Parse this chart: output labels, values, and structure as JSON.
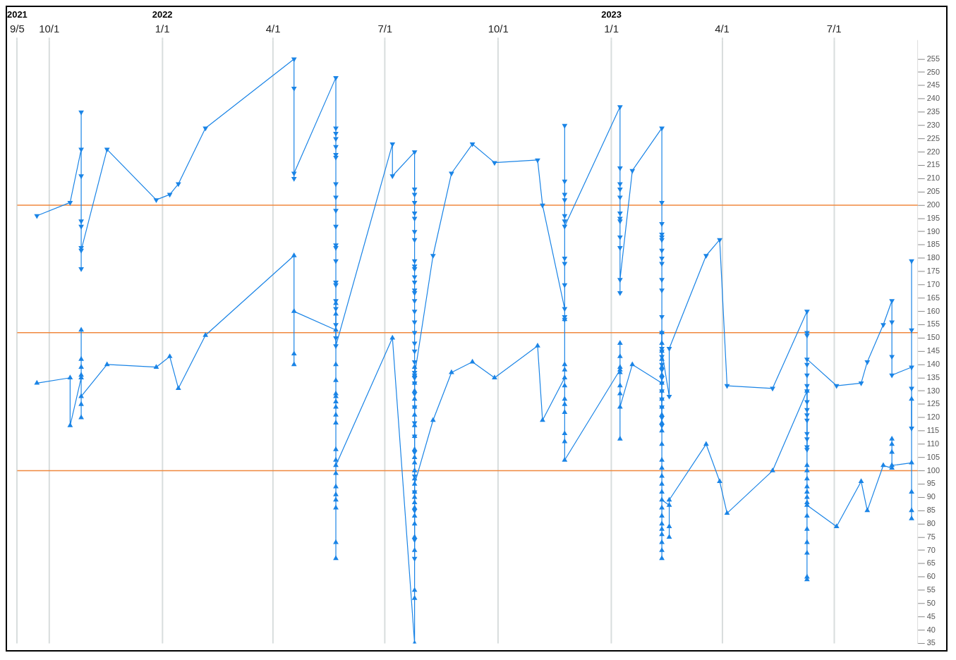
{
  "chart_data": {
    "type": "line",
    "xlim": [
      "2021-09-05",
      "2023-09-07"
    ],
    "xticks": [
      {
        "value": "2021-09-05",
        "label": "9/5"
      },
      {
        "value": "2021-10-01",
        "label": "10/1"
      },
      {
        "value": "2022-01-01",
        "label": "1/1"
      },
      {
        "value": "2022-04-01",
        "label": "4/1"
      },
      {
        "value": "2022-07-01",
        "label": "7/1"
      },
      {
        "value": "2022-10-01",
        "label": "10/1"
      },
      {
        "value": "2023-01-01",
        "label": "1/1"
      },
      {
        "value": "2023-04-01",
        "label": "4/1"
      },
      {
        "value": "2023-07-01",
        "label": "7/1"
      }
    ],
    "x2lim": [
      "2021-09-05",
      "2023-09-07"
    ],
    "x2ticks": [
      {
        "value": "2021-09-05",
        "label": "2021"
      },
      {
        "value": "2022-01-01",
        "label": "2022"
      },
      {
        "value": "2023-01-01",
        "label": "2023"
      }
    ],
    "ylim": [
      35,
      262
    ],
    "yticks": [
      35,
      40,
      45,
      50,
      55,
      60,
      65,
      70,
      75,
      80,
      85,
      90,
      95,
      100,
      105,
      110,
      115,
      120,
      125,
      130,
      135,
      140,
      145,
      150,
      155,
      160,
      165,
      170,
      175,
      180,
      185,
      190,
      195,
      200,
      205,
      210,
      215,
      220,
      225,
      230,
      235,
      240,
      245,
      250,
      255
    ],
    "grid": "x",
    "marker": "triangle",
    "ref_lines": [
      {
        "axis": "y",
        "value": 200,
        "color": "#f0883e"
      },
      {
        "axis": "y",
        "value": 152,
        "color": "#f0883e"
      },
      {
        "axis": "y",
        "value": 100,
        "color": "#f0883e"
      }
    ],
    "series": [
      {
        "color": "#1a84e6",
        "x": [
          "2021-09-21",
          "2021-10-18",
          "2021-10-27",
          "2021-10-27",
          "2021-10-27",
          "2021-10-27",
          "2021-10-27",
          "2021-10-27",
          "2021-10-27",
          "2021-10-27",
          "2021-11-17",
          "2021-12-27",
          "2022-01-07",
          "2022-01-14",
          "2022-02-05",
          "2022-04-18",
          "2022-04-18",
          "2022-04-18",
          "2022-04-18",
          "2022-05-22",
          "2022-05-22",
          "2022-05-22",
          "2022-05-22",
          "2022-05-22",
          "2022-05-22",
          "2022-05-22",
          "2022-05-22",
          "2022-05-22",
          "2022-05-22",
          "2022-05-22",
          "2022-05-22",
          "2022-05-22",
          "2022-05-22",
          "2022-05-22",
          "2022-05-22",
          "2022-05-22",
          "2022-05-22",
          "2022-05-22",
          "2022-05-22",
          "2022-05-22",
          "2022-07-07",
          "2022-07-07",
          "2022-07-25",
          "2022-07-25",
          "2022-07-25",
          "2022-07-25",
          "2022-07-25",
          "2022-07-25",
          "2022-07-25",
          "2022-07-25",
          "2022-07-25",
          "2022-07-25",
          "2022-07-25",
          "2022-07-25",
          "2022-07-25",
          "2022-07-25",
          "2022-07-25",
          "2022-07-25",
          "2022-07-25",
          "2022-07-25",
          "2022-07-25",
          "2022-07-25",
          "2022-07-25",
          "2022-07-25",
          "2022-07-25",
          "2022-07-25",
          "2022-07-25",
          "2022-07-25",
          "2022-07-25",
          "2022-07-25",
          "2022-07-25",
          "2022-07-25",
          "2022-07-25",
          "2022-07-25",
          "2022-07-25",
          "2022-07-25",
          "2022-07-25",
          "2022-07-25",
          "2022-08-09",
          "2022-08-24",
          "2022-09-10",
          "2022-09-28",
          "2022-11-02",
          "2022-11-06",
          "2022-11-24",
          "2022-11-24",
          "2022-11-24",
          "2022-11-24",
          "2022-11-24",
          "2022-11-24",
          "2022-11-24",
          "2022-11-24",
          "2022-11-24",
          "2022-11-24",
          "2022-11-24",
          "2022-11-24",
          "2022-11-24",
          "2023-01-08",
          "2023-01-08",
          "2023-01-08",
          "2023-01-08",
          "2023-01-08",
          "2023-01-08",
          "2023-01-08",
          "2023-01-08",
          "2023-01-08",
          "2023-01-08",
          "2023-01-08",
          "2023-01-08",
          "2023-01-18",
          "2023-02-11",
          "2023-02-11",
          "2023-02-11",
          "2023-02-11",
          "2023-02-11",
          "2023-02-11",
          "2023-02-11",
          "2023-02-11",
          "2023-02-11",
          "2023-02-11",
          "2023-02-11",
          "2023-02-11",
          "2023-02-11",
          "2023-02-11",
          "2023-02-11",
          "2023-02-11",
          "2023-02-11",
          "2023-02-11",
          "2023-02-11",
          "2023-02-11",
          "2023-02-11",
          "2023-02-11",
          "2023-02-11",
          "2023-02-11",
          "2023-02-11",
          "2023-02-17",
          "2023-02-17",
          "2023-03-19",
          "2023-03-30",
          "2023-04-05",
          "2023-05-12",
          "2023-06-09",
          "2023-06-09",
          "2023-06-09",
          "2023-06-09",
          "2023-06-09",
          "2023-06-09",
          "2023-06-09",
          "2023-06-09",
          "2023-06-09",
          "2023-06-09",
          "2023-06-09",
          "2023-06-09",
          "2023-06-09",
          "2023-06-09",
          "2023-06-09",
          "2023-06-09",
          "2023-07-03",
          "2023-07-23",
          "2023-07-28",
          "2023-08-10",
          "2023-08-17",
          "2023-08-17",
          "2023-08-17",
          "2023-08-17",
          "2023-09-02",
          "2023-09-02",
          "2023-09-02",
          "2023-09-02",
          "2023-09-02"
        ],
        "values": [
          196,
          201,
          221,
          235,
          211,
          194,
          192,
          176,
          184,
          183,
          221,
          202,
          204,
          208,
          229,
          255,
          244,
          210,
          212,
          248,
          229,
          227,
          225,
          222,
          219,
          218,
          208,
          203,
          198,
          192,
          185,
          184,
          179,
          171,
          170,
          164,
          161,
          155,
          150,
          147,
          223,
          211,
          220,
          206,
          204,
          201,
          197,
          195,
          190,
          187,
          179,
          177,
          176,
          173,
          171,
          168,
          167,
          164,
          160,
          156,
          152,
          148,
          145,
          141,
          137,
          135,
          133,
          129,
          124,
          118,
          113,
          107,
          98,
          92,
          85,
          74,
          67,
          136,
          181,
          212,
          223,
          216,
          217,
          200,
          161,
          158,
          157,
          170,
          178,
          180,
          230,
          209,
          204,
          202,
          196,
          194,
          192,
          237,
          214,
          208,
          206,
          203,
          197,
          195,
          194,
          188,
          184,
          167,
          172,
          213,
          229,
          201,
          193,
          189,
          188,
          187,
          183,
          180,
          178,
          172,
          168,
          158,
          152,
          146,
          143,
          140,
          138,
          135,
          133,
          130,
          127,
          124,
          120,
          117,
          145,
          128,
          146,
          181,
          187,
          132,
          131,
          160,
          152,
          151,
          136,
          132,
          130,
          126,
          123,
          121,
          119,
          114,
          112,
          109,
          108,
          140,
          142,
          132,
          133,
          141,
          155,
          164,
          156,
          143,
          136,
          139,
          179,
          153,
          131,
          116
        ]
      },
      {
        "color": "#1a84e6",
        "x": [
          "2021-09-21",
          "2021-10-18",
          "2021-10-18",
          "2021-10-27",
          "2021-10-27",
          "2021-10-27",
          "2021-10-27",
          "2021-10-27",
          "2021-10-27",
          "2021-10-27",
          "2021-10-27",
          "2021-11-17",
          "2021-12-27",
          "2022-01-07",
          "2022-01-14",
          "2022-02-05",
          "2022-04-18",
          "2022-04-18",
          "2022-04-18",
          "2022-04-18",
          "2022-05-22",
          "2022-05-22",
          "2022-05-22",
          "2022-05-22",
          "2022-05-22",
          "2022-05-22",
          "2022-05-22",
          "2022-05-22",
          "2022-05-22",
          "2022-05-22",
          "2022-05-22",
          "2022-05-22",
          "2022-05-22",
          "2022-05-22",
          "2022-05-22",
          "2022-05-22",
          "2022-05-22",
          "2022-05-22",
          "2022-05-22",
          "2022-05-22",
          "2022-05-22",
          "2022-07-07",
          "2022-07-25",
          "2022-07-25",
          "2022-07-25",
          "2022-07-25",
          "2022-07-25",
          "2022-07-25",
          "2022-07-25",
          "2022-07-25",
          "2022-07-25",
          "2022-07-25",
          "2022-07-25",
          "2022-07-25",
          "2022-07-25",
          "2022-07-25",
          "2022-07-25",
          "2022-07-25",
          "2022-07-25",
          "2022-07-25",
          "2022-07-25",
          "2022-07-25",
          "2022-07-25",
          "2022-07-25",
          "2022-07-25",
          "2022-07-25",
          "2022-07-25",
          "2022-07-25",
          "2022-08-09",
          "2022-08-24",
          "2022-09-10",
          "2022-09-28",
          "2022-11-02",
          "2022-11-06",
          "2022-11-24",
          "2022-11-24",
          "2022-11-24",
          "2022-11-24",
          "2022-11-24",
          "2022-11-24",
          "2022-11-24",
          "2022-11-24",
          "2022-11-24",
          "2022-11-24",
          "2022-11-24",
          "2023-01-08",
          "2023-01-08",
          "2023-01-08",
          "2023-01-08",
          "2023-01-08",
          "2023-01-08",
          "2023-01-08",
          "2023-01-08",
          "2023-01-08",
          "2023-01-18",
          "2023-02-11",
          "2023-02-11",
          "2023-02-11",
          "2023-02-11",
          "2023-02-11",
          "2023-02-11",
          "2023-02-11",
          "2023-02-11",
          "2023-02-11",
          "2023-02-11",
          "2023-02-11",
          "2023-02-11",
          "2023-02-11",
          "2023-02-11",
          "2023-02-11",
          "2023-02-11",
          "2023-02-11",
          "2023-02-11",
          "2023-02-11",
          "2023-02-11",
          "2023-02-11",
          "2023-02-11",
          "2023-02-11",
          "2023-02-11",
          "2023-02-11",
          "2023-02-11",
          "2023-02-11",
          "2023-02-11",
          "2023-02-17",
          "2023-02-17",
          "2023-02-17",
          "2023-02-17",
          "2023-03-19",
          "2023-03-30",
          "2023-04-05",
          "2023-05-12",
          "2023-06-09",
          "2023-06-09",
          "2023-06-09",
          "2023-06-09",
          "2023-06-09",
          "2023-06-09",
          "2023-06-09",
          "2023-06-09",
          "2023-06-09",
          "2023-06-09",
          "2023-06-09",
          "2023-06-09",
          "2023-06-09",
          "2023-06-09",
          "2023-06-09",
          "2023-07-03",
          "2023-07-23",
          "2023-07-28",
          "2023-08-10",
          "2023-08-17",
          "2023-08-17",
          "2023-08-17",
          "2023-08-17",
          "2023-08-17",
          "2023-09-02",
          "2023-09-02",
          "2023-09-02",
          "2023-09-02",
          "2023-09-02"
        ],
        "values": [
          133,
          135,
          117,
          135,
          153,
          142,
          139,
          136,
          125,
          120,
          128,
          140,
          139,
          143,
          131,
          151,
          181,
          144,
          140,
          160,
          153,
          163,
          159,
          140,
          134,
          129,
          128,
          126,
          124,
          121,
          118,
          108,
          104,
          99,
          94,
          91,
          89,
          86,
          73,
          67,
          102,
          150,
          35,
          52,
          55,
          70,
          75,
          80,
          83,
          86,
          88,
          90,
          92,
          97,
          100,
          103,
          105,
          108,
          113,
          117,
          121,
          124,
          127,
          130,
          133,
          136,
          139,
          95,
          119,
          137,
          141,
          135,
          147,
          119,
          135,
          157,
          140,
          138,
          132,
          127,
          125,
          122,
          114,
          111,
          104,
          138,
          148,
          143,
          139,
          137,
          132,
          129,
          112,
          124,
          140,
          133,
          152,
          148,
          145,
          142,
          139,
          136,
          130,
          127,
          124,
          121,
          118,
          115,
          110,
          104,
          101,
          98,
          95,
          92,
          86,
          83,
          80,
          78,
          76,
          73,
          70,
          67,
          89,
          87,
          79,
          75,
          89,
          110,
          96,
          84,
          100,
          130,
          102,
          100,
          97,
          94,
          92,
          90,
          88,
          83,
          78,
          73,
          69,
          60,
          59,
          87,
          79,
          96,
          85,
          102,
          101,
          112,
          110,
          107,
          102,
          103,
          127,
          92,
          85,
          82
        ]
      }
    ]
  }
}
